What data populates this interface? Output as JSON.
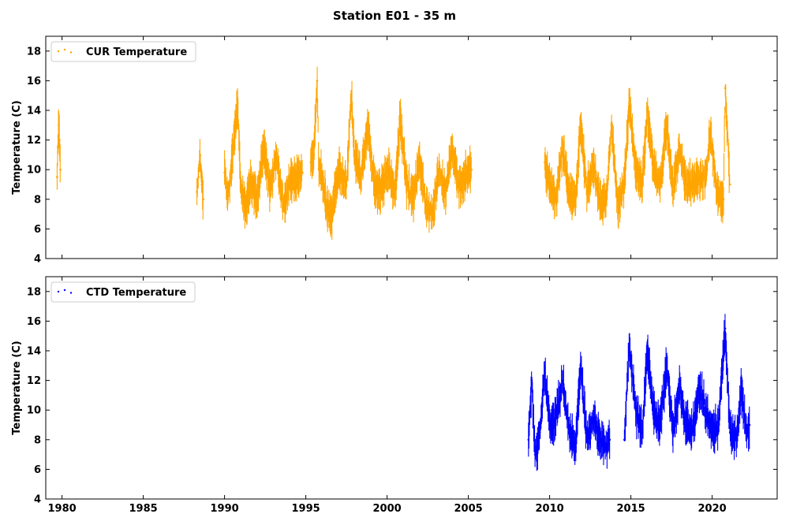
{
  "chart_data": {
    "title": "Station E01 - 35 m",
    "type": "scatter",
    "xlim": [
      1979,
      2024
    ],
    "xticks": [
      1980,
      1985,
      1990,
      1995,
      2000,
      2005,
      2010,
      2015,
      2020
    ],
    "panels": [
      {
        "ylabel": "Temperature (C)",
        "ylim": [
          4,
          19
        ],
        "yticks": [
          4,
          6,
          8,
          10,
          12,
          14,
          16,
          18
        ],
        "legend": "top-left",
        "series": [
          {
            "name": "CUR Temperature",
            "color": "#ffa500",
            "segments": [
              {
                "x": [
                  1979.7,
                  1979.75,
                  1979.8,
                  1979.85,
                  1979.9
                ],
                "y": [
                  9.5,
                  11.5,
                  13.0,
                  12.0,
                  10.0
                ]
              },
              {
                "x": [
                  1988.3,
                  1988.4,
                  1988.5,
                  1988.6,
                  1988.7
                ],
                "y": [
                  8.5,
                  9.5,
                  11.0,
                  9.0,
                  8.0
                ]
              },
              {
                "x": [
                  1990.0,
                  1990.2,
                  1990.5,
                  1990.8,
                  1991.0,
                  1991.3,
                  1991.6,
                  1992.0,
                  1992.4,
                  1992.8,
                  1993.2,
                  1993.6,
                  1994.0,
                  1994.4,
                  1994.8
                ],
                "y": [
                  9.8,
                  8.0,
                  11.0,
                  14.5,
                  8.5,
                  7.5,
                  9.0,
                  8.0,
                  11.5,
                  8.8,
                  11.0,
                  7.5,
                  9.0,
                  9.5,
                  9.8
                ]
              },
              {
                "x": [
                  1995.3,
                  1995.5,
                  1995.7,
                  1995.8,
                  1996.0,
                  1996.3,
                  1996.6,
                  1997.0,
                  1997.5,
                  1997.8,
                  1998.0,
                  1998.4,
                  1998.8,
                  1999.2,
                  1999.6,
                  2000.0,
                  2000.5,
                  2000.8,
                  2001.2,
                  2001.6,
                  2002.0,
                  2002.4,
                  2002.8,
                  2003.2,
                  2003.6,
                  2004.0,
                  2004.4,
                  2004.8,
                  2005.2
                ],
                "y": [
                  10.5,
                  11.0,
                  16.0,
                  10.0,
                  9.5,
                  7.5,
                  7.0,
                  10.0,
                  9.0,
                  15.0,
                  11.0,
                  9.5,
                  13.0,
                  9.0,
                  8.5,
                  10.0,
                  8.5,
                  13.5,
                  9.0,
                  8.0,
                  10.5,
                  7.5,
                  7.0,
                  10.0,
                  8.5,
                  11.5,
                  9.0,
                  9.5,
                  10.0
                ]
              },
              {
                "x": [
                  2009.7,
                  2010.0,
                  2010.4,
                  2010.8,
                  2011.2,
                  2011.6,
                  2011.9,
                  2012.3,
                  2012.7,
                  2013.1,
                  2013.5,
                  2013.8,
                  2014.2,
                  2014.6,
                  2014.9,
                  2015.3,
                  2015.7,
                  2016.0,
                  2016.4,
                  2016.8,
                  2017.2,
                  2017.6,
                  2018.0,
                  2018.4,
                  2019.6,
                  2019.9,
                  2020.3,
                  2020.7,
                  2020.8,
                  2021.1
                ],
                "y": [
                  10.5,
                  9.0,
                  8.0,
                  11.5,
                  8.5,
                  8.0,
                  13.0,
                  8.5,
                  10.5,
                  7.8,
                  8.0,
                  13.0,
                  7.5,
                  9.0,
                  14.5,
                  10.0,
                  9.0,
                  14.0,
                  10.0,
                  9.0,
                  13.0,
                  8.5,
                  11.5,
                  9.0,
                  9.5,
                  12.5,
                  8.5,
                  8.0,
                  15.5,
                  9.0
                ]
              }
            ]
          }
        ]
      },
      {
        "ylabel": "Temperature (C)",
        "ylim": [
          4,
          19
        ],
        "yticks": [
          4,
          6,
          8,
          10,
          12,
          14,
          16,
          18
        ],
        "legend": "top-left",
        "series": [
          {
            "name": "CTD Temperature",
            "color": "#0000ff",
            "segments": [
              {
                "x": [
                  2008.7,
                  2008.9,
                  2009.1,
                  2009.4,
                  2009.7,
                  2010.0,
                  2010.4,
                  2010.8,
                  2011.2,
                  2011.6,
                  2011.9,
                  2012.3,
                  2012.7,
                  2013.1,
                  2013.5,
                  2013.7
                ],
                "y": [
                  8.0,
                  12.0,
                  7.0,
                  8.5,
                  12.5,
                  9.0,
                  9.5,
                  12.0,
                  8.5,
                  7.5,
                  13.0,
                  8.0,
                  9.5,
                  8.0,
                  7.5,
                  8.0
                ]
              },
              {
                "x": [
                  2014.6,
                  2014.9,
                  2015.3,
                  2015.7,
                  2016.0,
                  2016.4,
                  2016.8,
                  2017.2,
                  2017.6,
                  2018.0,
                  2018.4,
                  2018.8,
                  2019.2,
                  2019.6,
                  2020.0,
                  2020.4,
                  2020.8,
                  2021.1,
                  2021.5,
                  2021.8,
                  2022.1,
                  2022.3
                ],
                "y": [
                  8.0,
                  14.5,
                  10.0,
                  8.5,
                  14.0,
                  10.0,
                  9.0,
                  13.0,
                  8.5,
                  11.5,
                  9.0,
                  8.5,
                  11.5,
                  10.0,
                  8.5,
                  9.0,
                  15.5,
                  8.5,
                  8.0,
                  11.5,
                  8.5,
                  9.0
                ]
              }
            ]
          }
        ]
      }
    ]
  }
}
